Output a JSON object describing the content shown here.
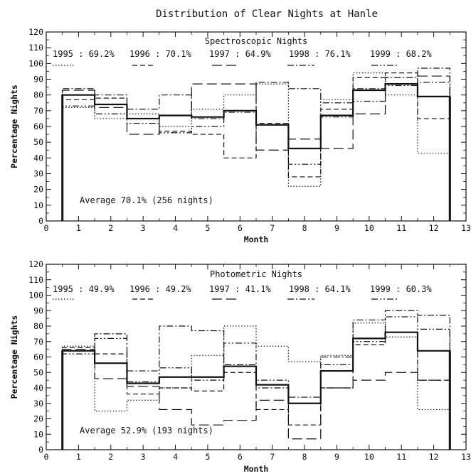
{
  "figure_title": "Distribution of Clear Nights at Hanle",
  "chart_data": [
    {
      "type": "histogram-step",
      "inner_title": "Spectroscopic Nights",
      "xlabel": "Month",
      "ylabel": "Percentage Nights",
      "xlim": [
        0,
        13
      ],
      "ylim": [
        0,
        120
      ],
      "xticks": [
        0,
        1,
        2,
        3,
        4,
        5,
        6,
        7,
        8,
        9,
        10,
        11,
        12,
        13
      ],
      "yticks": [
        0,
        10,
        20,
        30,
        40,
        50,
        60,
        70,
        80,
        90,
        100,
        110,
        120
      ],
      "months": [
        1,
        2,
        3,
        4,
        5,
        6,
        7,
        8,
        9,
        10,
        11,
        12
      ],
      "series": [
        {
          "name": "1995",
          "label": "1995 : 69.2%",
          "style": "dotted",
          "values": [
            72,
            65,
            68,
            60,
            71,
            80,
            87,
            22,
            77,
            94,
            80,
            43
          ]
        },
        {
          "name": "1996",
          "label": "1996 : 70.1%",
          "style": "dashed",
          "values": [
            77,
            78,
            65,
            57,
            55,
            40,
            62,
            28,
            71,
            91,
            94,
            65
          ]
        },
        {
          "name": "1997",
          "label": "1997 : 64.9%",
          "style": "longdash",
          "values": [
            83,
            72,
            55,
            67,
            87,
            87,
            45,
            52,
            46,
            68,
            87,
            92
          ]
        },
        {
          "name": "1998",
          "label": "1998 : 76.1%",
          "style": "dashdot",
          "values": [
            84,
            80,
            71,
            80,
            65,
            70,
            88,
            84,
            75,
            84,
            91,
            97
          ]
        },
        {
          "name": "1999",
          "label": "1999 : 68.2%",
          "style": "dashdotdot",
          "values": [
            73,
            68,
            62,
            56,
            60,
            69,
            61,
            36,
            66,
            76,
            86,
            88
          ]
        },
        {
          "name": "Average",
          "style": "solid",
          "values": [
            80,
            74,
            65,
            67,
            66,
            70,
            61,
            46,
            67,
            83,
            87,
            79
          ]
        }
      ],
      "annotation": "Average 70.1% (256 nights)"
    },
    {
      "type": "histogram-step",
      "inner_title": "Photometric Nights",
      "xlabel": "Month",
      "ylabel": "Percentage Nights",
      "xlim": [
        0,
        13
      ],
      "ylim": [
        0,
        120
      ],
      "xticks": [
        0,
        1,
        2,
        3,
        4,
        5,
        6,
        7,
        8,
        9,
        10,
        11,
        12,
        13
      ],
      "yticks": [
        0,
        10,
        20,
        30,
        40,
        50,
        60,
        70,
        80,
        90,
        100,
        110,
        120
      ],
      "months": [
        1,
        2,
        3,
        4,
        5,
        6,
        7,
        8,
        9,
        10,
        11,
        12
      ],
      "series": [
        {
          "name": "1995",
          "label": "1995 : 49.9%",
          "style": "dotted",
          "values": [
            67,
            25,
            32,
            40,
            61,
            80,
            67,
            57,
            61,
            82,
            73,
            26
          ]
        },
        {
          "name": "1996",
          "label": "1996 : 49.2%",
          "style": "dashed",
          "values": [
            66,
            62,
            36,
            40,
            38,
            50,
            26,
            16,
            40,
            68,
            76,
            45
          ]
        },
        {
          "name": "1997",
          "label": "1997 : 41.1%",
          "style": "longdash",
          "values": [
            65,
            46,
            41,
            26,
            16,
            19,
            32,
            7,
            40,
            45,
            50,
            45
          ]
        },
        {
          "name": "1998",
          "label": "1998 : 64.1%",
          "style": "dashdot",
          "values": [
            64,
            75,
            51,
            80,
            77,
            55,
            40,
            34,
            60,
            84,
            90,
            87
          ]
        },
        {
          "name": "1999",
          "label": "1999 : 60.3%",
          "style": "dashdotdot",
          "values": [
            62,
            72,
            44,
            53,
            45,
            69,
            45,
            30,
            55,
            70,
            86,
            78
          ]
        },
        {
          "name": "Average",
          "style": "solid",
          "values": [
            64,
            56,
            43,
            47,
            47,
            54,
            42,
            30,
            51,
            72,
            76,
            64
          ]
        }
      ],
      "annotation": "Average 52.9% (193 nights)"
    }
  ]
}
